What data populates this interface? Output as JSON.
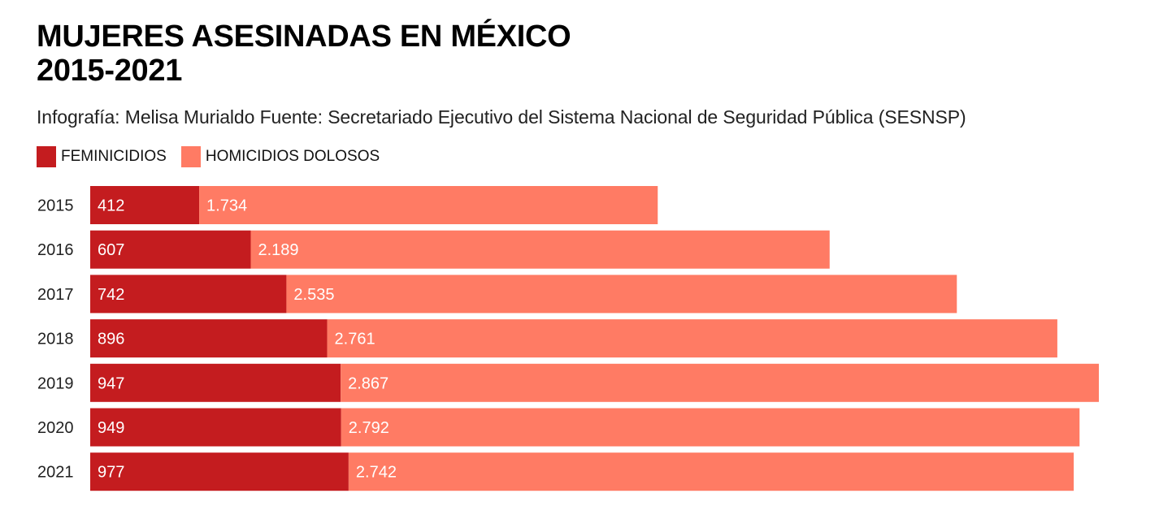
{
  "title_line1": "MUJERES ASESINADAS EN MÉXICO",
  "title_line2": "2015-2021",
  "subtitle": "Infografía: Melisa Murialdo Fuente: Secretariado Ejecutivo del Sistema Nacional de Seguridad Pública (SESNSP)",
  "colors": {
    "feminicidios": "#c41c1f",
    "homicidios": "#ff7b64"
  },
  "chart_data": {
    "type": "bar",
    "orientation": "horizontal",
    "stacked": true,
    "title": "MUJERES ASESINADAS EN MÉXICO 2015-2021",
    "subtitle": "Infografía: Melisa Murialdo Fuente: Secretariado Ejecutivo del Sistema Nacional de Seguridad Pública (SESNSP)",
    "xlabel": "",
    "ylabel": "",
    "categories": [
      "2015",
      "2016",
      "2017",
      "2018",
      "2019",
      "2020",
      "2021"
    ],
    "series": [
      {
        "name": "FEMINICIDIOS",
        "color": "#c41c1f",
        "values": [
          412,
          607,
          742,
          896,
          947,
          949,
          977
        ],
        "labels": [
          "412",
          "607",
          "742",
          "896",
          "947",
          "949",
          "977"
        ]
      },
      {
        "name": "HOMICIDIOS DOLOSOS",
        "color": "#ff7b64",
        "values": [
          1734,
          2189,
          2535,
          2761,
          2867,
          2792,
          2742
        ],
        "labels": [
          "1.734",
          "2.189",
          "2.535",
          "2.761",
          "2.867",
          "2.792",
          "2.742"
        ]
      }
    ],
    "xlim": [
      0,
      3814
    ],
    "grid": false,
    "legend_position": "top-left"
  }
}
